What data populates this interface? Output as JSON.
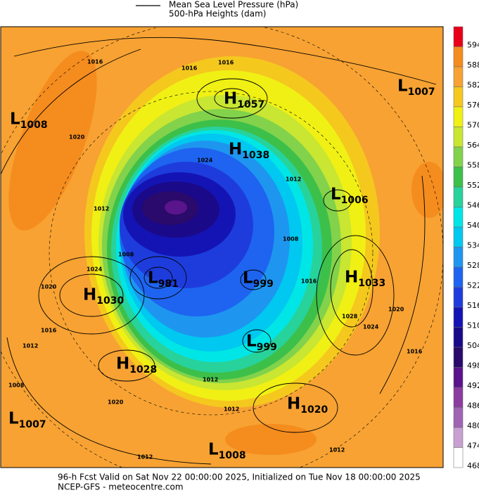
{
  "legend": {
    "lines": [
      "Mean Sea Level Pressure (hPa)",
      "500-hPa Heights (dam)"
    ]
  },
  "colorbar": [
    {
      "label": 594,
      "color": "#e8001a"
    },
    {
      "label": 588,
      "color": "#f58c1e"
    },
    {
      "label": 582,
      "color": "#f7a233"
    },
    {
      "label": 576,
      "color": "#f5c81e"
    },
    {
      "label": 570,
      "color": "#f0f014"
    },
    {
      "label": 564,
      "color": "#c8e632"
    },
    {
      "label": 558,
      "color": "#82d24b"
    },
    {
      "label": 552,
      "color": "#3cc04a"
    },
    {
      "label": 546,
      "color": "#28d29b"
    },
    {
      "label": 540,
      "color": "#00e6e6"
    },
    {
      "label": 534,
      "color": "#00c8f0"
    },
    {
      "label": 528,
      "color": "#1e96f0"
    },
    {
      "label": 522,
      "color": "#1e64f0"
    },
    {
      "label": 516,
      "color": "#1e3cdc"
    },
    {
      "label": 510,
      "color": "#1414b4"
    },
    {
      "label": 504,
      "color": "#1a0a8a"
    },
    {
      "label": 498,
      "color": "#2a0a6a"
    },
    {
      "label": 492,
      "color": "#5a148c"
    },
    {
      "label": 486,
      "color": "#8c3ca0"
    },
    {
      "label": 480,
      "color": "#a064b4"
    },
    {
      "label": 474,
      "color": "#c8a0d2"
    },
    {
      "label": 468,
      "color": "#ffffff"
    }
  ],
  "centers": [
    {
      "label": "L",
      "value": "1008"
    },
    {
      "label": "L",
      "value": "1007"
    },
    {
      "label": "H",
      "value": "1057"
    },
    {
      "label": "H",
      "value": "1038"
    },
    {
      "label": "L",
      "value": "1006"
    },
    {
      "label": "H",
      "value": "1033"
    },
    {
      "label": "H",
      "value": "1030"
    },
    {
      "label": "L",
      "value": "981"
    },
    {
      "label": "L",
      "value": "999"
    },
    {
      "label": "L",
      "value": "999"
    },
    {
      "label": "H",
      "value": "1028"
    },
    {
      "label": "H",
      "value": "1020"
    },
    {
      "label": "L",
      "value": "1007"
    },
    {
      "label": "L",
      "value": "1008"
    }
  ],
  "isobar_labels": [
    "1016",
    "1016",
    "1016",
    "1020",
    "1024",
    "1012",
    "1012",
    "1008",
    "1024",
    "1020",
    "1016",
    "1012",
    "1008",
    "1020",
    "1012",
    "1012",
    "1012",
    "1028",
    "1024",
    "1020",
    "1016",
    "1008",
    "1016",
    "1012"
  ],
  "footer": [
    "96-h Fcst Valid on Sat Nov 22 00:00:00 2025, Initialized on Tue Nov 18 00:00:00 2025",
    "NCEP-GFS  - meteocentre.com"
  ]
}
